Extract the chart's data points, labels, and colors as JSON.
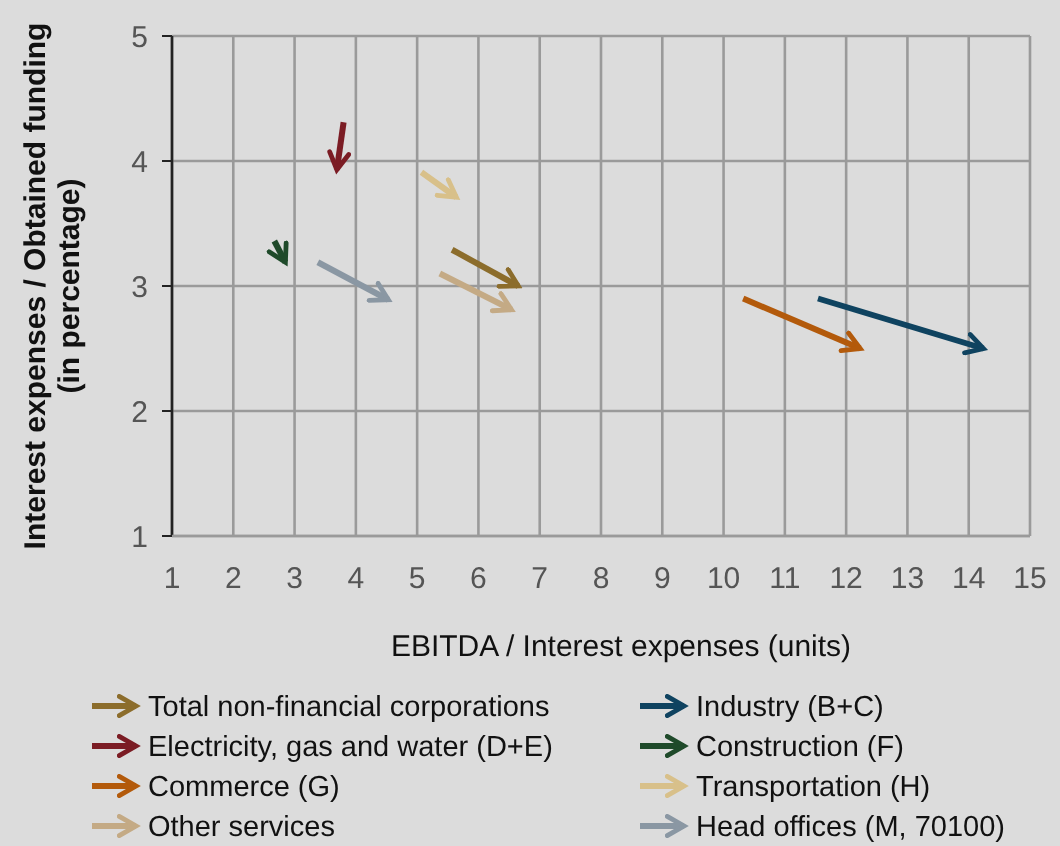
{
  "chart_data": {
    "type": "line",
    "xlabel": "EBITDA / Interest expenses (units)",
    "ylabel": "Interest expenses / Obtained funding\n(in percentage)",
    "xlim": [
      1,
      15
    ],
    "xticks": [
      1,
      2,
      3,
      4,
      5,
      6,
      7,
      8,
      9,
      10,
      11,
      12,
      13,
      14,
      15
    ],
    "ylim": [
      1,
      5
    ],
    "yticks": [
      1,
      2,
      3,
      4,
      5
    ],
    "grid": true,
    "legend": "bottom",
    "series": [
      {
        "name": "Total non-financial corporations",
        "color": "#8c6d2c",
        "x": [
          5.57,
          6.65
        ],
        "values": [
          3.29,
          3.0
        ]
      },
      {
        "name": "Industry (B+C)",
        "color": "#0f4360",
        "x": [
          11.54,
          14.24
        ],
        "values": [
          2.9,
          2.5
        ]
      },
      {
        "name": "Electricity, gas and water (D+E)",
        "color": "#7b1c24",
        "x": [
          3.8,
          3.69
        ],
        "values": [
          4.31,
          3.93
        ]
      },
      {
        "name": "Construction (F)",
        "color": "#1f4a2a",
        "x": [
          2.67,
          2.85
        ],
        "values": [
          3.36,
          3.19
        ]
      },
      {
        "name": "Commerce (G)",
        "color": "#b35a0b",
        "x": [
          10.32,
          12.23
        ],
        "values": [
          2.9,
          2.5
        ]
      },
      {
        "name": "Transportation (H)",
        "color": "#d8c08a",
        "x": [
          5.07,
          5.64
        ],
        "values": [
          3.91,
          3.71
        ]
      },
      {
        "name": "Other services",
        "color": "#c4aa85",
        "x": [
          5.37,
          6.54
        ],
        "values": [
          3.1,
          2.81
        ]
      },
      {
        "name": "Head offices (M, 70100)",
        "color": "#8a97a3",
        "x": [
          3.38,
          4.53
        ],
        "values": [
          3.19,
          2.89
        ]
      }
    ]
  }
}
